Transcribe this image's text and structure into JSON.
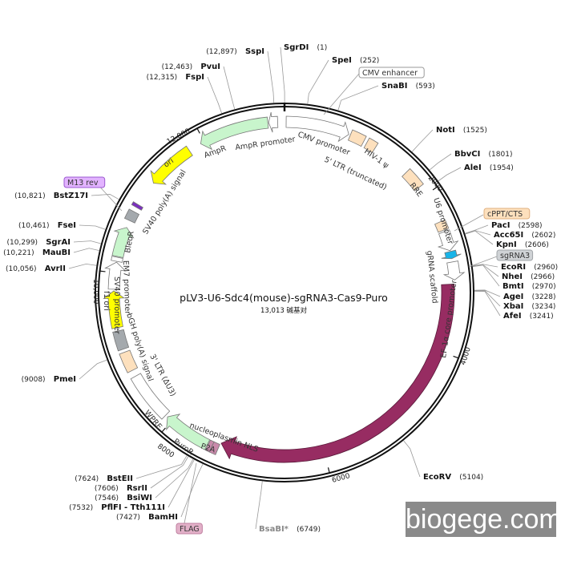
{
  "title": "pLV3-U6-Sdc4(mouse)-sgRNA3-Cas9-Puro",
  "length_label": "13,013 碱基对",
  "total_bp": 13013,
  "watermark": "biogege.com",
  "ticks": [
    {
      "bp": 2000,
      "label": "2000"
    },
    {
      "bp": 4000,
      "label": "4000"
    },
    {
      "bp": 6000,
      "label": "6000"
    },
    {
      "bp": 8000,
      "label": "8000"
    },
    {
      "bp": 10000,
      "label": "10,000"
    },
    {
      "bp": 12000,
      "label": "12,000"
    }
  ],
  "features": [
    {
      "label": "CMV promoter",
      "start": 20,
      "end": 800,
      "color": "#ffffff",
      "arrow": "cw"
    },
    {
      "label": "5' LTR (truncated)",
      "start": 820,
      "end": 1000,
      "color": "#fde0bd",
      "arrow": "none"
    },
    {
      "label": "HIV-1 ψ",
      "start": 1040,
      "end": 1160,
      "color": "#fde0bd",
      "arrow": "none"
    },
    {
      "label": "RRE",
      "start": 1640,
      "end": 1880,
      "color": "#fde0bd",
      "arrow": "none"
    },
    {
      "label": "cPPT/CTS",
      "start": 2370,
      "end": 2480,
      "color": "#fde0bd",
      "arrow": "none"
    },
    {
      "label": "U6 promoter",
      "start": 2500,
      "end": 2740,
      "color": "#ffffff",
      "arrow": "cw"
    },
    {
      "label": "gRNA scaffold",
      "start": 2750,
      "end": 2840,
      "color": "#18b4e8",
      "arrow": "cw"
    },
    {
      "label": "EF-1α core promoter",
      "start": 2880,
      "end": 3100,
      "color": "#ffffff",
      "arrow": "cw"
    },
    {
      "label": "Cas9",
      "start": 3150,
      "end": 7330,
      "color": "#972c62",
      "arrow": "cw"
    },
    {
      "label": "nucleoplasmin NLS",
      "start": 7340,
      "end": 7420,
      "color": "#c98aab",
      "arrow": "none"
    },
    {
      "label": "P2A",
      "start": 7420,
      "end": 7470,
      "color": "#c98aab",
      "arrow": "none"
    },
    {
      "label": "PuroR",
      "start": 7480,
      "end": 8070,
      "color": "#c8f5cc",
      "arrow": "cw"
    },
    {
      "label": "WPRE",
      "start": 8100,
      "end": 8700,
      "color": "#ffffff",
      "arrow": "none"
    },
    {
      "label": "3' LTR (ΔU3)",
      "start": 8780,
      "end": 9020,
      "color": "#fde0bd",
      "arrow": "none"
    },
    {
      "label": "bGH poly(A) signal",
      "start": 9060,
      "end": 9290,
      "color": "#a4a9ad",
      "arrow": "none"
    },
    {
      "label": "f1 ori",
      "start": 9330,
      "end": 9780,
      "color": "#ffff00",
      "arrow": "cw"
    },
    {
      "label": "SV40 promoter",
      "start": 9800,
      "end": 10130,
      "color": "#ffffff",
      "arrow": "cw"
    },
    {
      "label": "EM7 promoter",
      "start": 10140,
      "end": 10190,
      "color": "#ffffff",
      "arrow": "none"
    },
    {
      "label": "BleoR",
      "start": 10200,
      "end": 10570,
      "color": "#c8f5cc",
      "arrow": "cw"
    },
    {
      "label": "SV40 poly(A) signal",
      "start": 10660,
      "end": 10780,
      "color": "#a4a9ad",
      "arrow": "none"
    },
    {
      "label": "M13 rev",
      "start": 10840,
      "end": 10880,
      "color": "#7b2fbf",
      "arrow": "none"
    },
    {
      "label": "ori",
      "start": 11200,
      "end": 11790,
      "color": "#ffff00",
      "arrow": "ccw"
    },
    {
      "label": "AmpR",
      "start": 11950,
      "end": 12810,
      "color": "#c8f5cc",
      "arrow": "ccw"
    },
    {
      "label": "AmpR promoter",
      "start": 12820,
      "end": 12930,
      "color": "#ffffff",
      "arrow": "ccw"
    }
  ],
  "boxed_labels": [
    {
      "label": "CMV enhancer",
      "color": "#ffffff",
      "border": "#999999"
    },
    {
      "label": "M13 rev",
      "color": "#e2b3ff",
      "border": "#9b59d0"
    },
    {
      "label": "cPPT/CTS",
      "color": "#fde0bd",
      "border": "#e0b080"
    },
    {
      "label": "sgRNA3",
      "color": "#d0d3d6",
      "border": "#a0a4a8"
    },
    {
      "label": "FLAG",
      "color": "#e2b0c8",
      "border": "#c080a0"
    }
  ],
  "enzymes": [
    {
      "name": "SgrDI",
      "pos": "(1)",
      "bp": 1
    },
    {
      "name": "SpeI",
      "pos": "(252)",
      "bp": 252
    },
    {
      "name": "SnaBI",
      "pos": "(593)",
      "bp": 593
    },
    {
      "name": "NotI",
      "pos": "(1525)",
      "bp": 1525
    },
    {
      "name": "BbvCI",
      "pos": "(1801)",
      "bp": 1801
    },
    {
      "name": "AleI",
      "pos": "(1954)",
      "bp": 1954
    },
    {
      "name": "PacI",
      "pos": "(2598)",
      "bp": 2598
    },
    {
      "name": "Acc65I",
      "pos": "(2602)",
      "bp": 2602
    },
    {
      "name": "KpnI",
      "pos": "(2606)",
      "bp": 2606
    },
    {
      "name": "EcoRI",
      "pos": "(2960)",
      "bp": 2960
    },
    {
      "name": "NheI",
      "pos": "(2966)",
      "bp": 2966
    },
    {
      "name": "BmtI",
      "pos": "(2970)",
      "bp": 2970
    },
    {
      "name": "AgeI",
      "pos": "(3228)",
      "bp": 3228
    },
    {
      "name": "XbaI",
      "pos": "(3234)",
      "bp": 3234
    },
    {
      "name": "AfeI",
      "pos": "(3241)",
      "bp": 3241
    },
    {
      "name": "EcoRV",
      "pos": "(5104)",
      "bp": 5104
    },
    {
      "name": "BsaBI*",
      "pos": "(6749)",
      "bp": 6749
    },
    {
      "name": "BamHI",
      "pos": "(7427)",
      "bp": 7427
    },
    {
      "name": "PflFI - Tth111I",
      "pos": "(7532)",
      "bp": 7532
    },
    {
      "name": "BsiWI",
      "pos": "(7546)",
      "bp": 7546
    },
    {
      "name": "RsrII",
      "pos": "(7606)",
      "bp": 7606
    },
    {
      "name": "BstEII",
      "pos": "(7624)",
      "bp": 7624
    },
    {
      "name": "PmeI",
      "pos": "(9008)",
      "bp": 9008
    },
    {
      "name": "AvrII",
      "pos": "(10,056)",
      "bp": 10056
    },
    {
      "name": "MauBI",
      "pos": "(10,221)",
      "bp": 10221
    },
    {
      "name": "SgrAI",
      "pos": "(10,299)",
      "bp": 10299
    },
    {
      "name": "FseI",
      "pos": "(10,461)",
      "bp": 10461
    },
    {
      "name": "BstZ17I",
      "pos": "(10,821)",
      "bp": 10821
    },
    {
      "name": "FspI",
      "pos": "(12,315)",
      "bp": 12315
    },
    {
      "name": "PvuI",
      "pos": "(12,463)",
      "bp": 12463
    },
    {
      "name": "SspI",
      "pos": "(12,897)",
      "bp": 12897
    }
  ]
}
